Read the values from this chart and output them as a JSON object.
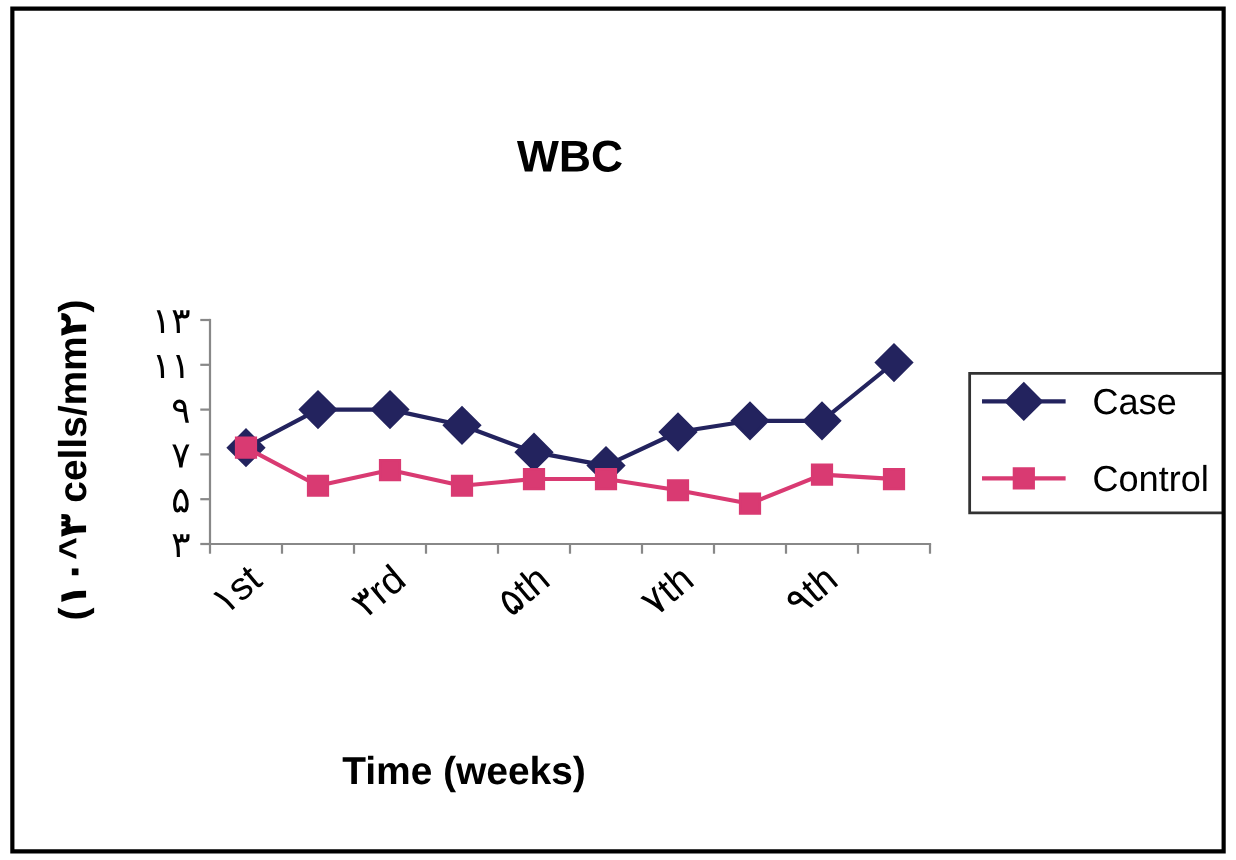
{
  "chart_data": {
    "type": "line",
    "title": "WBC",
    "xlabel": "Time (weeks)",
    "ylabel": "(۱۰^۳ cells/mm۲)",
    "categories": [
      "۱st",
      null,
      "۳rd",
      null,
      "۵th",
      null,
      "۷th",
      null,
      "۹th",
      null
    ],
    "series": [
      {
        "name": "Case",
        "color": "#23235e",
        "marker": "diamond",
        "values": [
          7.3,
          9.0,
          9.0,
          8.3,
          7.1,
          6.5,
          8.0,
          8.5,
          8.5,
          11.1
        ]
      },
      {
        "name": "Control",
        "color": "#d93a72",
        "marker": "square",
        "values": [
          7.3,
          5.6,
          6.3,
          5.6,
          5.9,
          5.9,
          5.4,
          4.8,
          6.1,
          5.9
        ]
      }
    ],
    "ylim": [
      3,
      13
    ],
    "yticks": [
      {
        "value": 3,
        "label": "۳"
      },
      {
        "value": 5,
        "label": "۵"
      },
      {
        "value": 7,
        "label": "۷"
      },
      {
        "value": 9,
        "label": "۹"
      },
      {
        "value": 11,
        "label": "۱۱"
      },
      {
        "value": 13,
        "label": "۱۳"
      }
    ],
    "grid": false,
    "legend": "right",
    "line_style": "solid"
  }
}
